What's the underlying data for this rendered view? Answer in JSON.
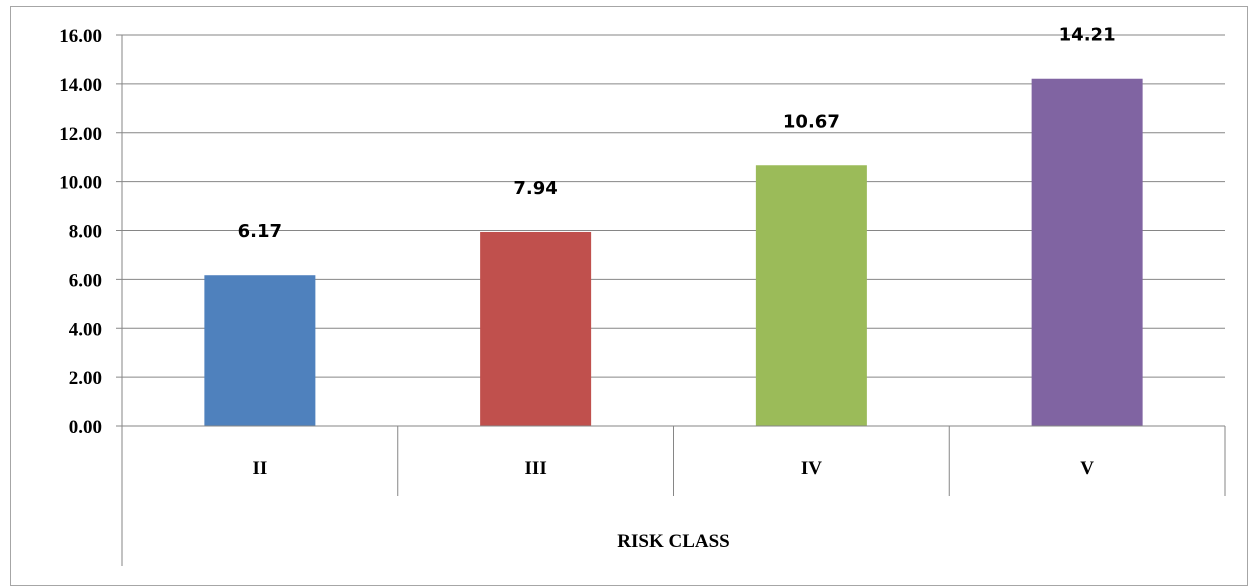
{
  "chart_data": {
    "type": "bar",
    "categories": [
      "II",
      "III",
      "IV",
      "V"
    ],
    "values": [
      6.17,
      7.94,
      10.67,
      14.21
    ],
    "data_labels": [
      "6.17",
      "7.94",
      "10.67",
      "14.21"
    ],
    "colors": [
      "#4f81bd",
      "#c0504d",
      "#9bbb59",
      "#8064a2"
    ],
    "xlabel": "RISK CLASS",
    "ylabel": "",
    "ylim": [
      0,
      16
    ],
    "yticks": [
      "0.00",
      "2.00",
      "4.00",
      "6.00",
      "8.00",
      "10.00",
      "12.00",
      "14.00",
      "16.00"
    ],
    "grid": true,
    "legend": "none"
  }
}
